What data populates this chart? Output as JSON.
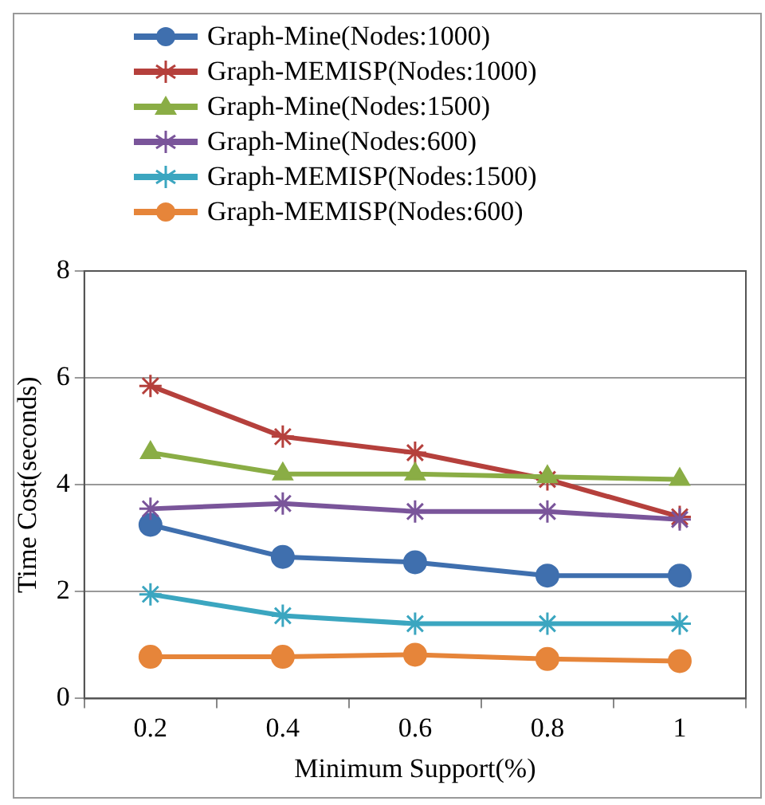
{
  "chart_data": {
    "type": "line",
    "xlabel": "Minimum Support(%)",
    "ylabel": "Time Cost(seconds)",
    "categories": [
      "0.2",
      "0.4",
      "0.6",
      "0.8",
      "1"
    ],
    "ylim": [
      0,
      8
    ],
    "yticks": [
      0,
      2,
      4,
      6,
      8
    ],
    "grid": "y",
    "legend": "top",
    "series": [
      {
        "name": "Graph-Mine(Nodes:1000)",
        "color": "#3f6fae",
        "marker": "circle",
        "values": [
          3.25,
          2.65,
          2.55,
          2.3,
          2.3
        ]
      },
      {
        "name": "Graph-MEMISP(Nodes:1000)",
        "color": "#b5403c",
        "marker": "cross",
        "values": [
          5.85,
          4.9,
          4.6,
          4.1,
          3.4
        ]
      },
      {
        "name": "Graph-Mine(Nodes:1500)",
        "color": "#8aad45",
        "marker": "triangle",
        "values": [
          4.6,
          4.2,
          4.2,
          4.15,
          4.1
        ]
      },
      {
        "name": "Graph-Mine(Nodes:600)",
        "color": "#7a559a",
        "marker": "cross",
        "values": [
          3.55,
          3.65,
          3.5,
          3.5,
          3.35
        ]
      },
      {
        "name": "Graph-MEMISP(Nodes:1500)",
        "color": "#3ba6c0",
        "marker": "cross",
        "values": [
          1.95,
          1.55,
          1.4,
          1.4,
          1.4
        ]
      },
      {
        "name": "Graph-MEMISP(Nodes:600)",
        "color": "#e6853a",
        "marker": "circle",
        "values": [
          0.78,
          0.78,
          0.82,
          0.74,
          0.7
        ]
      }
    ]
  }
}
